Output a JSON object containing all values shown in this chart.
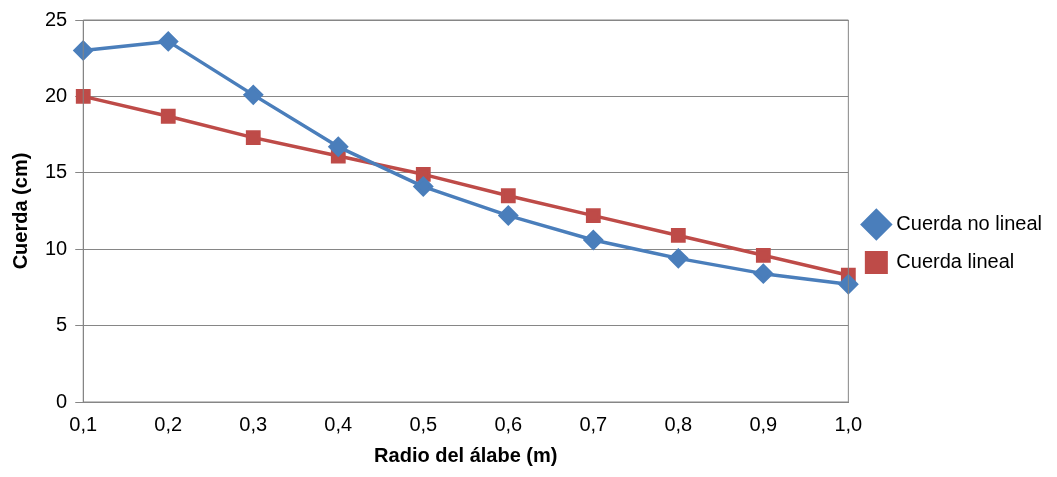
{
  "chart_data": {
    "type": "line",
    "xlabel": "Radio del álabe (m)",
    "ylabel": "Cuerda (cm)",
    "categories": [
      "0,1",
      "0,2",
      "0,3",
      "0,4",
      "0,5",
      "0,6",
      "0,7",
      "0,8",
      "0,9",
      "1,0"
    ],
    "series": [
      {
        "name": "Cuerda no lineal",
        "color": "#4a7ebb",
        "marker": "diamond",
        "values": [
          23.0,
          23.6,
          20.1,
          16.7,
          14.1,
          12.2,
          10.6,
          9.4,
          8.4,
          7.7
        ]
      },
      {
        "name": "Cuerda lineal",
        "color": "#be4b48",
        "marker": "square",
        "values": [
          20.0,
          18.7,
          17.3,
          16.1,
          14.9,
          13.5,
          12.2,
          10.9,
          9.6,
          8.3
        ]
      }
    ],
    "ylim": [
      0,
      25
    ],
    "yticks": [
      0,
      5,
      10,
      15,
      20,
      25
    ],
    "grid": "y",
    "legend": "right"
  }
}
